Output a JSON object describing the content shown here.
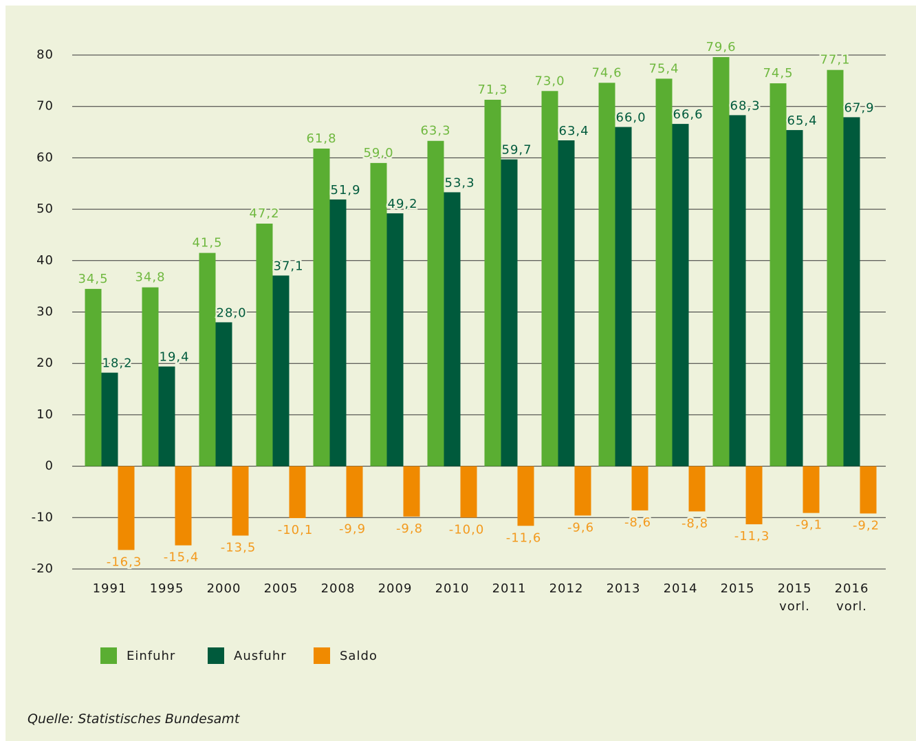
{
  "chart_data": {
    "type": "bar",
    "categories": [
      "1991",
      "1995",
      "2000",
      "2005",
      "2008",
      "2009",
      "2010",
      "2011",
      "2012",
      "2013",
      "2014",
      "2015",
      "2015\nvorl.",
      "2016\nvorl."
    ],
    "series": [
      {
        "name": "Einfuhr",
        "color": "#5aae32",
        "label_color": "#6fb83f",
        "values": [
          34.5,
          34.8,
          41.5,
          47.2,
          61.8,
          59.0,
          63.3,
          71.3,
          73.0,
          74.6,
          75.4,
          79.6,
          74.5,
          77.1
        ],
        "value_labels": [
          "34,5",
          "34,8",
          "41,5",
          "47,2",
          "61,8",
          "59,0",
          "63,3",
          "71,3",
          "73,0",
          "74,6",
          "75,4",
          "79,6",
          "74,5",
          "77,1"
        ]
      },
      {
        "name": "Ausfuhr",
        "color": "#005a3c",
        "label_color": "#005a3c",
        "values": [
          18.2,
          19.4,
          28.0,
          37.1,
          51.9,
          49.2,
          53.3,
          59.7,
          63.4,
          66.0,
          66.6,
          68.3,
          65.4,
          67.9
        ],
        "value_labels": [
          "18,2",
          "19,4",
          "28,0",
          "37,1",
          "51,9",
          "49,2",
          "53,3",
          "59,7",
          "63,4",
          "66,0",
          "66,6",
          "68,3",
          "65,4",
          "67,9"
        ]
      },
      {
        "name": "Saldo",
        "color": "#f08a00",
        "label_color": "#f39a1e",
        "values": [
          -16.3,
          -15.4,
          -13.5,
          -10.1,
          -9.9,
          -9.8,
          -10.0,
          -11.6,
          -9.6,
          -8.6,
          -8.8,
          -11.3,
          -9.1,
          -9.2
        ],
        "value_labels": [
          "-16,3",
          "-15,4",
          "-13,5",
          "-10,1",
          "-9,9",
          "-9,8",
          "-10,0",
          "-11,6",
          "-9,6",
          "-8,6",
          "-8,8",
          "-11,3",
          "-9,1",
          "-9,2"
        ]
      }
    ],
    "ylim": [
      -20,
      80
    ],
    "yticks": [
      -20,
      -10,
      0,
      10,
      20,
      30,
      40,
      50,
      60,
      70,
      80
    ],
    "grid": true,
    "legend": "bottom",
    "source": "Quelle: Statistisches Bundesamt"
  }
}
